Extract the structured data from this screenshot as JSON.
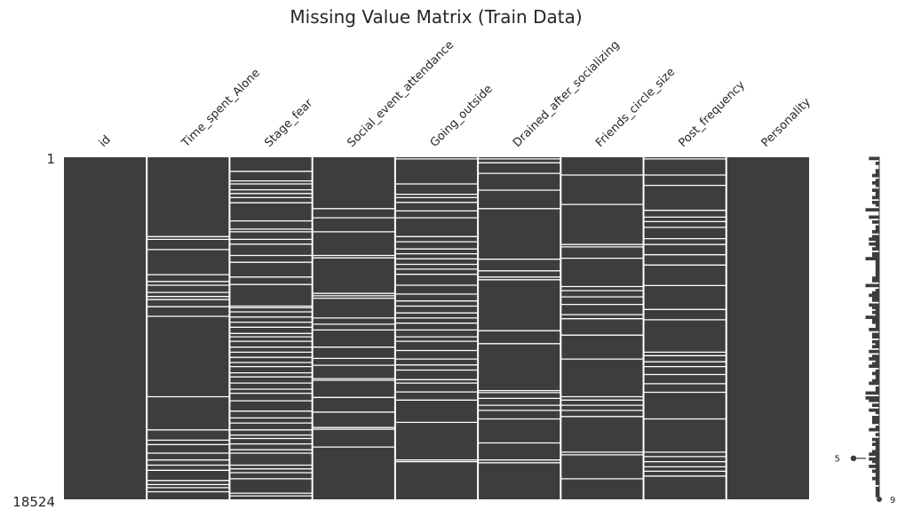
{
  "chart_data": {
    "type": "heatmap",
    "title": "Missing Value Matrix (Train Data)",
    "columns": [
      "id",
      "Time_spent_Alone",
      "Stage_fear",
      "Social_event_attendance",
      "Going_outside",
      "Drained_after_socializing",
      "Friends_circle_size",
      "Post_frequency",
      "Personality"
    ],
    "row_start_label": "1",
    "row_end_label": "18524",
    "total_rows": 18524,
    "filled_color": "#3d3d3d",
    "missing_color": "#ffffff",
    "missing_row_fractions": {
      "id": [],
      "Time_spent_Alone": [
        0.232,
        0.24,
        0.27,
        0.343,
        0.363,
        0.374,
        0.395,
        0.407,
        0.416,
        0.437,
        0.465,
        0.7,
        0.797,
        0.827,
        0.84,
        0.865,
        0.885,
        0.9,
        0.915,
        0.945,
        0.957,
        0.966,
        0.978
      ],
      "Stage_fear": [
        0.041,
        0.069,
        0.078,
        0.095,
        0.106,
        0.118,
        0.133,
        0.186,
        0.21,
        0.218,
        0.24,
        0.254,
        0.287,
        0.307,
        0.35,
        0.372,
        0.435,
        0.44,
        0.452,
        0.467,
        0.482,
        0.497,
        0.515,
        0.525,
        0.538,
        0.555,
        0.57,
        0.585,
        0.6,
        0.612,
        0.63,
        0.642,
        0.66,
        0.678,
        0.69,
        0.712,
        0.742,
        0.762,
        0.777,
        0.797,
        0.812,
        0.822,
        0.838,
        0.855,
        0.865,
        0.9,
        0.911,
        0.922,
        0.94,
        0.982,
        0.99
      ],
      "Social_event_attendance": [
        0.15,
        0.177,
        0.218,
        0.287,
        0.294,
        0.398,
        0.405,
        0.412,
        0.47,
        0.488,
        0.505,
        0.555,
        0.588,
        0.608,
        0.647,
        0.652,
        0.702,
        0.745,
        0.79,
        0.795,
        0.847
      ],
      "Going_outside": [
        0.005,
        0.078,
        0.108,
        0.118,
        0.132,
        0.157,
        0.177,
        0.232,
        0.247,
        0.268,
        0.282,
        0.297,
        0.313,
        0.327,
        0.342,
        0.374,
        0.4,
        0.42,
        0.435,
        0.455,
        0.47,
        0.485,
        0.505,
        0.525,
        0.538,
        0.565,
        0.59,
        0.607,
        0.622,
        0.65,
        0.66,
        0.686,
        0.71,
        0.775,
        0.885,
        0.89
      ],
      "Drained_after_socializing": [
        0.005,
        0.016,
        0.047,
        0.096,
        0.15,
        0.298,
        0.332,
        0.35,
        0.358,
        0.507,
        0.545,
        0.682,
        0.688,
        0.705,
        0.725,
        0.74,
        0.765,
        0.835,
        0.885,
        0.893
      ],
      "Friends_circle_size": [
        0.052,
        0.138,
        0.255,
        0.262,
        0.295,
        0.378,
        0.39,
        0.408,
        0.43,
        0.46,
        0.472,
        0.52,
        0.59,
        0.7,
        0.71,
        0.725,
        0.74,
        0.758,
        0.862,
        0.87,
        0.94
      ],
      "Post_frequency": [
        0.005,
        0.052,
        0.082,
        0.155,
        0.175,
        0.188,
        0.205,
        0.238,
        0.255,
        0.285,
        0.315,
        0.375,
        0.445,
        0.475,
        0.57,
        0.58,
        0.598,
        0.612,
        0.635,
        0.662,
        0.687,
        0.765,
        0.862,
        0.875,
        0.89,
        0.905,
        0.918,
        0.932
      ]
    },
    "sparkline": {
      "min_label": "5",
      "max_label": "9",
      "min_row_fraction": 0.88
    }
  }
}
